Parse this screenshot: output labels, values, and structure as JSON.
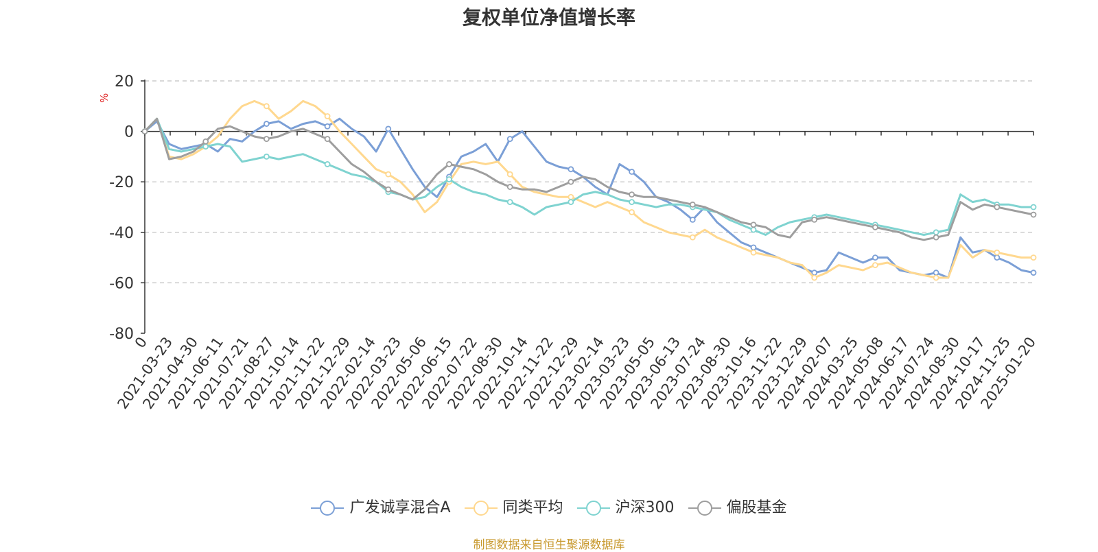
{
  "chart_data": {
    "type": "line",
    "title": "复权单位净值增长率",
    "ylabel": "%",
    "ylim": [
      -80,
      20
    ],
    "yticks": [
      20,
      0,
      -20,
      -40,
      -60,
      -80
    ],
    "xticks": [
      "0",
      "2021-03-23",
      "2021-04-30",
      "2021-06-11",
      "2021-07-21",
      "2021-08-27",
      "2021-10-14",
      "2021-11-22",
      "2021-12-29",
      "2022-02-14",
      "2022-03-23",
      "2022-05-06",
      "2022-06-15",
      "2022-07-22",
      "2022-08-30",
      "2022-10-14",
      "2022-11-22",
      "2022-12-29",
      "2023-02-14",
      "2023-03-23",
      "2023-05-05",
      "2023-06-13",
      "2023-07-24",
      "2023-08-30",
      "2023-10-16",
      "2023-11-22",
      "2023-12-29",
      "2024-02-07",
      "2024-03-25",
      "2024-05-08",
      "2024-06-17",
      "2024-07-24",
      "2024-08-30",
      "2024-10-17",
      "2024-11-25",
      "2025-01-20"
    ],
    "grid": true,
    "legend_position": "bottom",
    "series": [
      {
        "name": "广发诚享混合A",
        "color": "#7b9fd6",
        "values": [
          0,
          4,
          -5,
          -7,
          -6,
          -5,
          -8,
          -3,
          -4,
          0,
          3,
          4,
          1,
          3,
          4,
          2,
          5,
          1,
          -2,
          -8,
          1,
          -7,
          -15,
          -22,
          -26,
          -18,
          -10,
          -8,
          -5,
          -12,
          -3,
          0,
          -6,
          -12,
          -14,
          -15,
          -18,
          -22,
          -25,
          -13,
          -16,
          -20,
          -26,
          -28,
          -31,
          -35,
          -30,
          -36,
          -40,
          -44,
          -46,
          -48,
          -50,
          -52,
          -54,
          -56,
          -55,
          -48,
          -50,
          -52,
          -50,
          -50,
          -55,
          -56,
          -57,
          -56,
          -58,
          -42,
          -48,
          -47,
          -50,
          -52,
          -55,
          -56
        ]
      },
      {
        "name": "同类平均",
        "color": "#ffd88f",
        "values": [
          0,
          5,
          -10,
          -11,
          -9,
          -6,
          -2,
          5,
          10,
          12,
          10,
          5,
          8,
          12,
          10,
          6,
          0,
          -5,
          -10,
          -15,
          -17,
          -20,
          -25,
          -32,
          -28,
          -20,
          -13,
          -12,
          -13,
          -12,
          -17,
          -22,
          -24,
          -25,
          -26,
          -26,
          -28,
          -30,
          -28,
          -30,
          -32,
          -36,
          -38,
          -40,
          -41,
          -42,
          -39,
          -42,
          -44,
          -46,
          -48,
          -49,
          -50,
          -52,
          -53,
          -58,
          -56,
          -53,
          -54,
          -55,
          -53,
          -52,
          -54,
          -56,
          -57,
          -58,
          -58,
          -45,
          -50,
          -47,
          -48,
          -49,
          -50,
          -50
        ]
      },
      {
        "name": "沪深300",
        "color": "#7fd3d0",
        "values": [
          0,
          5,
          -7,
          -8,
          -7,
          -6,
          -5,
          -6,
          -12,
          -11,
          -10,
          -11,
          -10,
          -9,
          -11,
          -13,
          -15,
          -17,
          -18,
          -20,
          -24,
          -25,
          -27,
          -26,
          -22,
          -19,
          -22,
          -24,
          -25,
          -27,
          -28,
          -30,
          -33,
          -30,
          -29,
          -28,
          -25,
          -24,
          -25,
          -27,
          -28,
          -29,
          -30,
          -29,
          -29,
          -30,
          -31,
          -32,
          -35,
          -37,
          -39,
          -41,
          -38,
          -36,
          -35,
          -34,
          -33,
          -34,
          -35,
          -36,
          -37,
          -38,
          -39,
          -40,
          -41,
          -40,
          -39,
          -25,
          -28,
          -27,
          -29,
          -29,
          -30,
          -30
        ]
      },
      {
        "name": "偏股基金",
        "color": "#9e9e9e",
        "values": [
          0,
          5,
          -11,
          -10,
          -8,
          -4,
          1,
          2,
          0,
          -2,
          -3,
          -2,
          0,
          1,
          -1,
          -3,
          -8,
          -13,
          -16,
          -20,
          -23,
          -25,
          -27,
          -23,
          -17,
          -13,
          -14,
          -15,
          -17,
          -20,
          -22,
          -23,
          -23,
          -24,
          -22,
          -20,
          -18,
          -19,
          -22,
          -24,
          -25,
          -26,
          -26,
          -27,
          -28,
          -29,
          -30,
          -32,
          -34,
          -36,
          -37,
          -38,
          -41,
          -42,
          -36,
          -35,
          -34,
          -35,
          -36,
          -37,
          -38,
          -39,
          -40,
          -42,
          -43,
          -42,
          -41,
          -28,
          -31,
          -29,
          -30,
          -31,
          -32,
          -33
        ]
      }
    ]
  },
  "source_note": "制图数据来自恒生聚源数据库"
}
